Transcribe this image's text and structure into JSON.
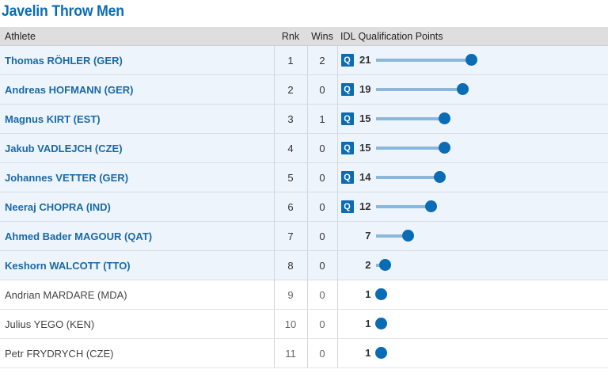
{
  "title": "Javelin Throw Men",
  "header": {
    "athlete": "Athlete",
    "rank": "Rnk",
    "wins": "Wins",
    "points": "IDL Qualification Points"
  },
  "max_points": 21,
  "rows": [
    {
      "athlete": "Thomas RÖHLER (GER)",
      "rank": "1",
      "wins": "2",
      "qualified": true,
      "badge": "Q",
      "points": 21
    },
    {
      "athlete": "Andreas HOFMANN (GER)",
      "rank": "2",
      "wins": "0",
      "qualified": true,
      "badge": "Q",
      "points": 19
    },
    {
      "athlete": "Magnus KIRT (EST)",
      "rank": "3",
      "wins": "1",
      "qualified": true,
      "badge": "Q",
      "points": 15
    },
    {
      "athlete": "Jakub VADLEJCH (CZE)",
      "rank": "4",
      "wins": "0",
      "qualified": true,
      "badge": "Q",
      "points": 15
    },
    {
      "athlete": "Johannes VETTER (GER)",
      "rank": "5",
      "wins": "0",
      "qualified": true,
      "badge": "Q",
      "points": 14
    },
    {
      "athlete": "Neeraj CHOPRA (IND)",
      "rank": "6",
      "wins": "0",
      "qualified": true,
      "badge": "Q",
      "points": 12
    },
    {
      "athlete": "Ahmed Bader MAGOUR (QAT)",
      "rank": "7",
      "wins": "0",
      "qualified": true,
      "badge": "",
      "points": 7
    },
    {
      "athlete": "Keshorn WALCOTT (TTO)",
      "rank": "8",
      "wins": "0",
      "qualified": true,
      "badge": "",
      "points": 2
    },
    {
      "athlete": "Andrian MARDARE (MDA)",
      "rank": "9",
      "wins": "0",
      "qualified": false,
      "badge": "",
      "points": 1
    },
    {
      "athlete": "Julius YEGO (KEN)",
      "rank": "10",
      "wins": "0",
      "qualified": false,
      "badge": "",
      "points": 1
    },
    {
      "athlete": "Petr FRYDRYCH (CZE)",
      "rank": "11",
      "wins": "0",
      "qualified": false,
      "badge": "",
      "points": 1
    }
  ],
  "colors": {
    "accent": "#0a6cb5",
    "bar": "#8ab8dc",
    "highlight_row": "#edf4fb",
    "header_bg": "#dedede"
  }
}
